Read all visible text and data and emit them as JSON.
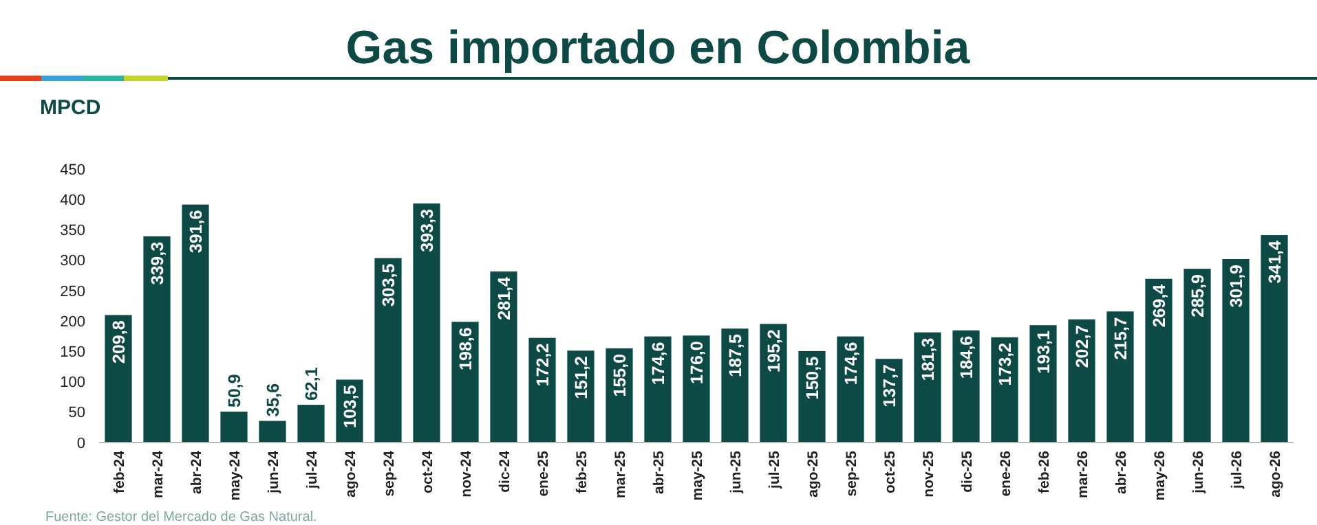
{
  "chart_data": {
    "type": "bar",
    "title": "Gas importado en Colombia",
    "ylabel": "MPCD",
    "categories": [
      "feb-24",
      "mar-24",
      "abr-24",
      "may-24",
      "jun-24",
      "jul-24",
      "ago-24",
      "sep-24",
      "oct-24",
      "nov-24",
      "dic-24",
      "ene-25",
      "feb-25",
      "mar-25",
      "abr-25",
      "may-25",
      "jun-25",
      "jul-25",
      "ago-25",
      "sep-25",
      "oct-25",
      "nov-25",
      "dic-25",
      "ene-26",
      "feb-26",
      "mar-26",
      "abr-26",
      "may-26",
      "jun-26",
      "jul-26",
      "ago-26"
    ],
    "values": [
      209.8,
      339.3,
      391.6,
      50.9,
      35.6,
      62.1,
      103.5,
      303.5,
      393.3,
      198.6,
      281.4,
      172.2,
      151.2,
      155.0,
      174.6,
      176.0,
      187.5,
      195.2,
      150.5,
      174.6,
      137.7,
      181.3,
      184.6,
      173.2,
      193.1,
      202.7,
      215.7,
      269.4,
      285.9,
      301.9,
      341.4
    ],
    "value_labels": [
      "209,8",
      "339,3",
      "391,6",
      "50,9",
      "35,6",
      "62,1",
      "103,5",
      "303,5",
      "393,3",
      "198,6",
      "281,4",
      "172,2",
      "151,2",
      "155,0",
      "174,6",
      "176,0",
      "187,5",
      "195,2",
      "150,5",
      "174,6",
      "137,7",
      "181,3",
      "184,6",
      "173,2",
      "193,1",
      "202,7",
      "215,7",
      "269,4",
      "285,9",
      "301,9",
      "341,4"
    ],
    "color": "#0d4a45",
    "ylim": [
      0,
      450
    ],
    "yticks": [
      0,
      50,
      100,
      150,
      200,
      250,
      300,
      350,
      400,
      450
    ],
    "grid": false,
    "annotations": [
      "Fuente: Gestor del Mercado de Gas Natural."
    ]
  }
}
